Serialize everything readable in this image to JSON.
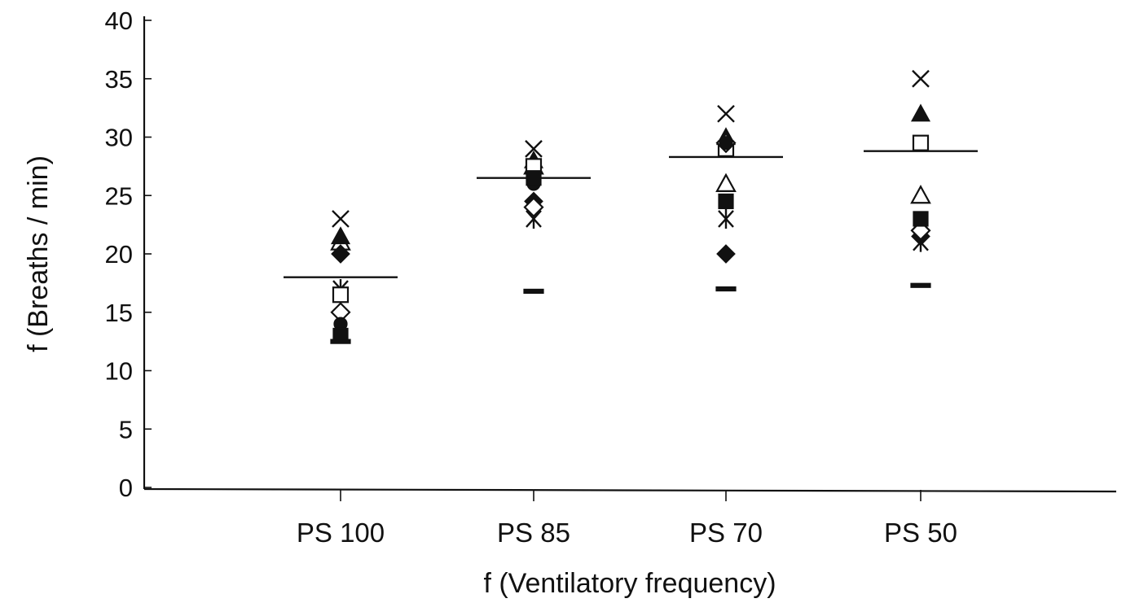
{
  "chart_data": {
    "type": "scatter",
    "title": "",
    "xlabel": "f (Ventilatory frequency)",
    "ylabel": "f (Breaths / min)",
    "ylim": [
      0,
      40
    ],
    "yticks": [
      0,
      5,
      10,
      15,
      20,
      25,
      30,
      35,
      40
    ],
    "categories": [
      "PS 100",
      "PS 85",
      "PS 70",
      "PS 50"
    ],
    "grid": false,
    "legend": "none",
    "means": [
      18,
      26.5,
      28.3,
      28.8
    ],
    "series": [
      {
        "marker": "x",
        "values": [
          23,
          29,
          32,
          35
        ]
      },
      {
        "marker": "open-triangle",
        "values": [
          21,
          27.5,
          26,
          25
        ]
      },
      {
        "marker": "filled-triangle",
        "values": [
          21.5,
          28,
          30,
          32
        ]
      },
      {
        "marker": "filled-diamond",
        "values": [
          20,
          24.5,
          20,
          21.5
        ]
      },
      {
        "marker": "star",
        "values": [
          17,
          23,
          23,
          21
        ]
      },
      {
        "marker": "open-square",
        "values": [
          16.5,
          27.5,
          29,
          29.5
        ]
      },
      {
        "marker": "open-diamond",
        "values": [
          15,
          24,
          29.5,
          22
        ]
      },
      {
        "marker": "filled-circle",
        "values": [
          14,
          26,
          29.5,
          23
        ]
      },
      {
        "marker": "filled-square",
        "values": [
          13,
          26.5,
          24.5,
          23
        ]
      },
      {
        "marker": "dash",
        "values": [
          12.5,
          16.8,
          17,
          17.3
        ]
      }
    ]
  }
}
